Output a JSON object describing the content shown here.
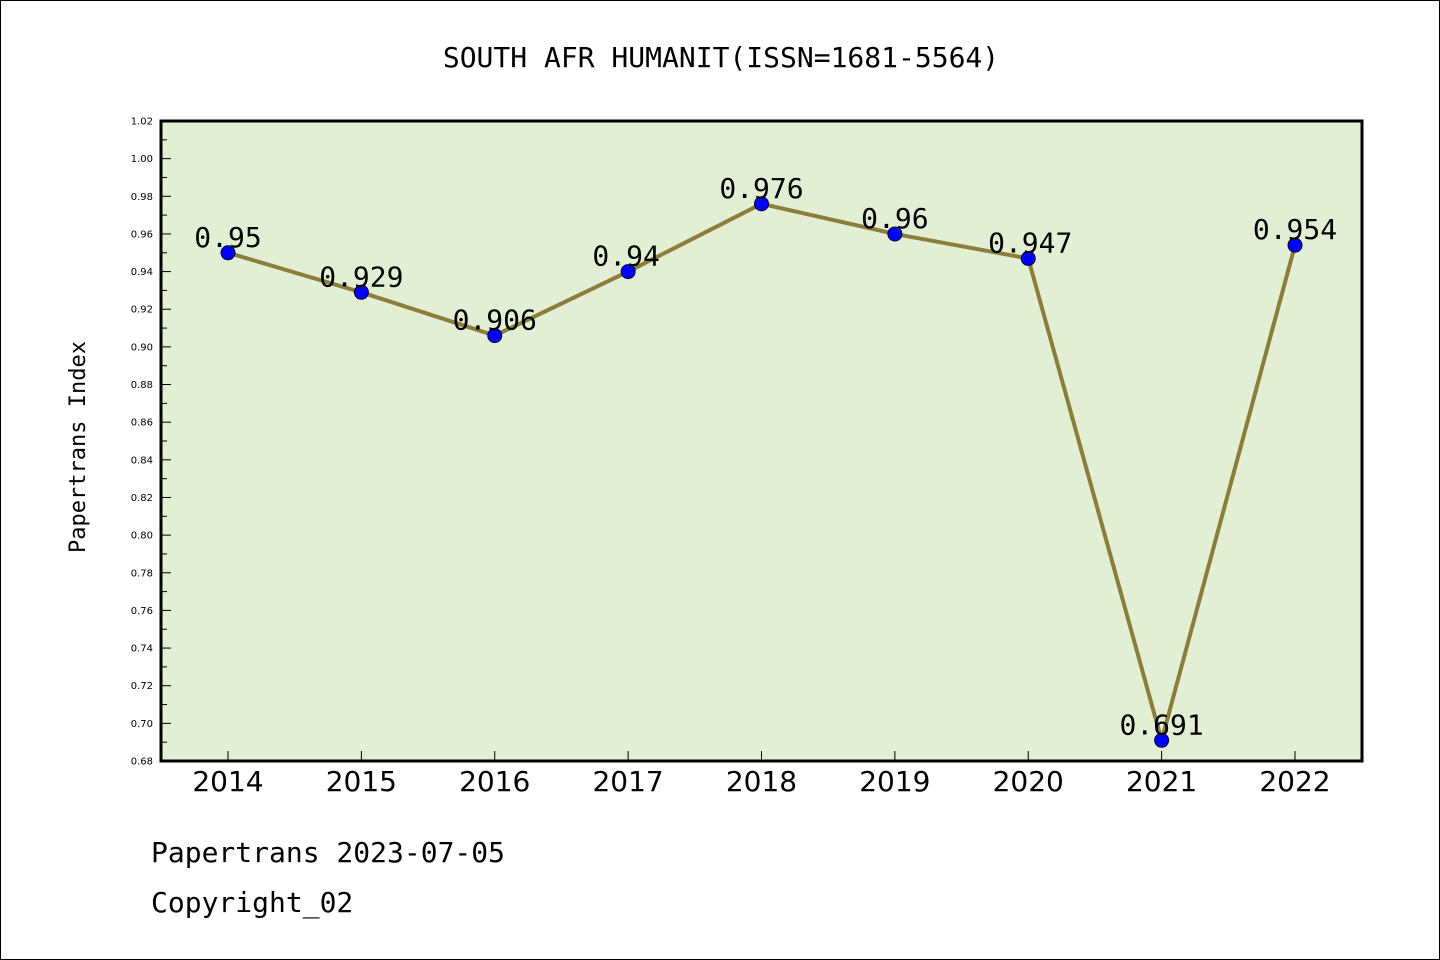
{
  "chart_data": {
    "type": "line",
    "title": "SOUTH AFR HUMANIT(ISSN=1681-5564)",
    "xlabel": "",
    "ylabel": "Papertrans Index",
    "categories": [
      "2014",
      "2015",
      "2016",
      "2017",
      "2018",
      "2019",
      "2020",
      "2021",
      "2022"
    ],
    "series": [
      {
        "values": [
          0.95,
          0.929,
          0.906,
          0.94,
          0.976,
          0.96,
          0.947,
          0.691,
          0.954
        ],
        "labels": [
          "0.95",
          "0.929",
          "0.906",
          "0.94",
          "0.976",
          "0.96",
          "0.947",
          "0.691",
          "0.954"
        ]
      }
    ],
    "ylim": [
      0.68,
      1.02
    ],
    "yticks": [
      "0.68",
      "0.70",
      "0.72",
      "0.74",
      "0.76",
      "0.78",
      "0.80",
      "0.82",
      "0.84",
      "0.86",
      "0.88",
      "0.90",
      "0.92",
      "0.94",
      "0.96",
      "0.98",
      "1.00",
      "1.02"
    ],
    "grid": false,
    "legend": "none",
    "colors": {
      "plot_background": "#e2efd4",
      "line": "#8b7d3a",
      "marker": "#0000ff"
    }
  },
  "footer": {
    "line1": "Papertrans 2023-07-05",
    "line2": "Copyright_02"
  }
}
